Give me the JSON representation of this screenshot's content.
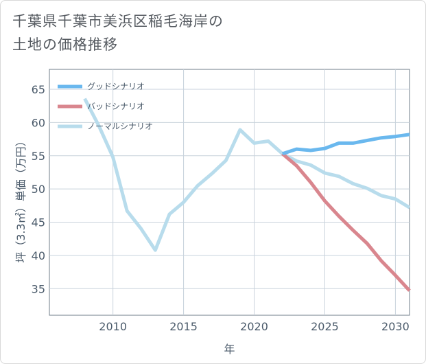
{
  "title": {
    "line1": "千葉県千葉市美浜区稲毛海岸の",
    "line2": "土地の価格推移"
  },
  "chart_data": {
    "type": "line",
    "xlabel": "年",
    "ylabel": "坪（3.3㎡）単価（万円）",
    "xlim": [
      2005.5,
      2031
    ],
    "ylim": [
      31,
      68
    ],
    "xticks": [
      2010,
      2015,
      2020,
      2025,
      2030
    ],
    "yticks": [
      35,
      40,
      45,
      50,
      55,
      60,
      65
    ],
    "grid": true,
    "legend_position": "top-left",
    "series": [
      {
        "name": "グッドシナリオ",
        "color": "#6ab8ee",
        "x": [
          2022,
          2023,
          2024,
          2025,
          2026,
          2027,
          2028,
          2029,
          2030,
          2031
        ],
        "y": [
          55.3,
          56.0,
          55.8,
          56.1,
          56.9,
          56.9,
          57.3,
          57.7,
          57.9,
          58.2
        ]
      },
      {
        "name": "バッドシナリオ",
        "color": "#d9868e",
        "x": [
          2022,
          2023,
          2024,
          2025,
          2026,
          2027,
          2028,
          2029,
          2030,
          2031
        ],
        "y": [
          55.3,
          53.5,
          51.0,
          48.2,
          45.9,
          43.8,
          41.8,
          39.2,
          37.0,
          34.7
        ]
      },
      {
        "name": "ノーマルシナリオ",
        "color": "#b8dcec",
        "x": [
          2008,
          2009,
          2010,
          2011,
          2012,
          2013,
          2014,
          2015,
          2016,
          2017,
          2018,
          2019,
          2020,
          2021,
          2022,
          2023,
          2024,
          2025,
          2026,
          2027,
          2028,
          2029,
          2030,
          2031
        ],
        "y": [
          63.6,
          59.5,
          54.8,
          46.7,
          44.0,
          40.8,
          46.2,
          48.0,
          50.5,
          52.3,
          54.3,
          58.9,
          56.9,
          57.2,
          55.3,
          54.2,
          53.6,
          52.4,
          51.9,
          50.8,
          50.1,
          49.0,
          48.5,
          47.2
        ]
      }
    ]
  }
}
